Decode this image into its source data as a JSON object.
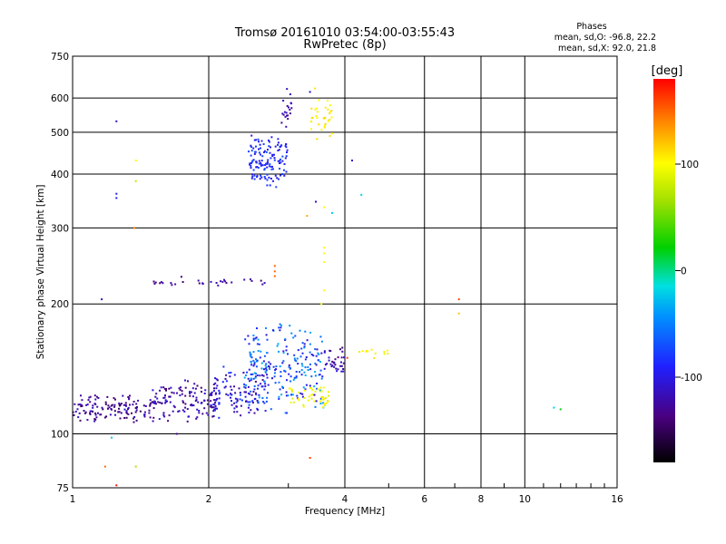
{
  "chart_data": {
    "type": "scatter",
    "title": "Tromsø 20161010 03:54:00-03:55:43",
    "subtitle": "RwPretec (8p)",
    "xlabel": "Frequency [MHz]",
    "ylabel": "Stationary phase Virtual Height [km]",
    "x_scale": "log",
    "y_scale": "log",
    "xlim": [
      1,
      16
    ],
    "ylim": [
      75,
      750
    ],
    "x_ticks": [
      "1",
      "2",
      "4",
      "6",
      "8",
      "10",
      "16"
    ],
    "y_ticks": [
      "75",
      "100",
      "200",
      "300",
      "400",
      "500",
      "600",
      "750"
    ],
    "grid": true,
    "legend_stats": {
      "heading": "Phases",
      "line_o": "mean, sd,O: -96.8, 22.2",
      "line_x": "mean, sd,X:  92.0, 21.8"
    },
    "colorbar": {
      "label": "[deg]",
      "range": [
        -180,
        180
      ],
      "ticks": [
        "100",
        "0",
        "-100"
      ],
      "tick_values": [
        100,
        0,
        -100
      ]
    },
    "clusters": [
      {
        "f": [
          1.0,
          1.5
        ],
        "h": [
          105,
          125
        ],
        "phase": [
          -150,
          -110
        ],
        "n": 130
      },
      {
        "f": [
          1.5,
          2.1
        ],
        "h": [
          105,
          135
        ],
        "phase": [
          -145,
          -100
        ],
        "n": 130
      },
      {
        "f": [
          2.0,
          2.7
        ],
        "h": [
          108,
          145
        ],
        "phase": [
          -130,
          -70
        ],
        "n": 120
      },
      {
        "f": [
          2.4,
          3.6
        ],
        "h": [
          110,
          185
        ],
        "phase": [
          -110,
          -30
        ],
        "n": 220
      },
      {
        "f": [
          3.0,
          3.7
        ],
        "h": [
          112,
          130
        ],
        "phase": [
          85,
          110
        ],
        "n": 45
      },
      {
        "f": [
          3.6,
          4.0
        ],
        "h": [
          135,
          160
        ],
        "phase": [
          -140,
          -100
        ],
        "n": 35
      },
      {
        "f": [
          4.3,
          5.0
        ],
        "h": [
          148,
          158
        ],
        "phase": [
          90,
          110
        ],
        "n": 12
      },
      {
        "f": [
          1.5,
          2.7
        ],
        "h": [
          218,
          232
        ],
        "phase": [
          -140,
          -110
        ],
        "n": 30
      },
      {
        "f": [
          2.45,
          3.0
        ],
        "h": [
          365,
          500
        ],
        "phase": [
          -105,
          -70
        ],
        "n": 130
      },
      {
        "f": [
          2.9,
          3.05
        ],
        "h": [
          500,
          640
        ],
        "phase": [
          -140,
          -110
        ],
        "n": 20
      },
      {
        "f": [
          3.35,
          3.75
        ],
        "h": [
          460,
          645
        ],
        "phase": [
          95,
          115
        ],
        "n": 35
      }
    ],
    "outliers": [
      {
        "f": 1.25,
        "h": 530,
        "phase": -115
      },
      {
        "f": 1.25,
        "h": 360,
        "phase": -90
      },
      {
        "f": 1.25,
        "h": 352,
        "phase": -90
      },
      {
        "f": 1.38,
        "h": 430,
        "phase": 100
      },
      {
        "f": 1.38,
        "h": 385,
        "phase": 80
      },
      {
        "f": 1.37,
        "h": 300,
        "phase": 140
      },
      {
        "f": 1.16,
        "h": 205,
        "phase": -115
      },
      {
        "f": 1.25,
        "h": 76,
        "phase": 175
      },
      {
        "f": 1.18,
        "h": 84,
        "phase": 150
      },
      {
        "f": 1.38,
        "h": 84,
        "phase": 70
      },
      {
        "f": 1.22,
        "h": 98,
        "phase": -20
      },
      {
        "f": 1.7,
        "h": 100,
        "phase": -130
      },
      {
        "f": 3.35,
        "h": 88,
        "phase": 160
      },
      {
        "f": 2.8,
        "h": 245,
        "phase": 150
      },
      {
        "f": 2.8,
        "h": 238,
        "phase": 150
      },
      {
        "f": 2.8,
        "h": 232,
        "phase": 150
      },
      {
        "f": 3.35,
        "h": 620,
        "phase": -110
      },
      {
        "f": 3.45,
        "h": 345,
        "phase": -110
      },
      {
        "f": 3.6,
        "h": 335,
        "phase": 100
      },
      {
        "f": 3.75,
        "h": 325,
        "phase": -20
      },
      {
        "f": 3.3,
        "h": 320,
        "phase": 130
      },
      {
        "f": 4.15,
        "h": 430,
        "phase": -110
      },
      {
        "f": 4.35,
        "h": 358,
        "phase": -20
      },
      {
        "f": 3.6,
        "h": 270,
        "phase": 100
      },
      {
        "f": 3.6,
        "h": 262,
        "phase": 100
      },
      {
        "f": 3.6,
        "h": 250,
        "phase": 100
      },
      {
        "f": 3.6,
        "h": 215,
        "phase": 100
      },
      {
        "f": 3.55,
        "h": 200,
        "phase": 100
      },
      {
        "f": 4.05,
        "h": 150,
        "phase": 160
      },
      {
        "f": 7.15,
        "h": 205,
        "phase": 160
      },
      {
        "f": 7.15,
        "h": 190,
        "phase": 120
      },
      {
        "f": 11.6,
        "h": 115,
        "phase": -20
      },
      {
        "f": 12.0,
        "h": 114,
        "phase": 20
      }
    ]
  }
}
